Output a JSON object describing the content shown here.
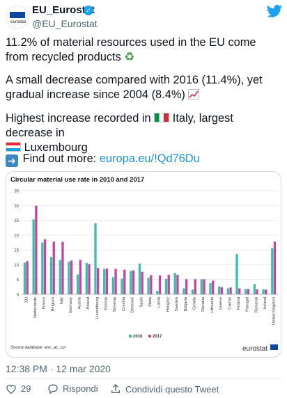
{
  "user": {
    "display_name": "EU_Eurostat",
    "handle": "@EU_Eurostat",
    "logo_text": "eurostat",
    "verified_icon": "verified-badge-icon"
  },
  "tweet": {
    "p1": "11.2% of material resources used in the EU come from recycled products",
    "p2": "A small decrease compared with 2016 (11.4%), yet gradual increase since 2004 (8.4%)",
    "p3a": "Highest increase recorded in",
    "p3b": "Italy, largest decrease in",
    "p3c": "Luxembourg",
    "p4a": "Find out more:",
    "p4link": "europa.eu/!Qd76Du"
  },
  "chart_data": {
    "type": "bar",
    "title": "Circular material use rate in 2010 and 2017",
    "categories": [
      "EU",
      "Netherlands",
      "France",
      "Belgium",
      "Italy",
      "Germany",
      "Austria",
      "Poland",
      "Luxembourg",
      "Estonia",
      "Slovenia",
      "Czechia",
      "Denmark",
      "Spain",
      "Malta",
      "Latvia",
      "Hungary",
      "Sweden",
      "Bulgaria",
      "Croatia",
      "Slovakia",
      "Lithuania",
      "Greece",
      "Cyprus",
      "Finland",
      "Portugal",
      "Romania",
      "Ireland",
      "United Kingdom"
    ],
    "series": [
      {
        "name": "2010",
        "color": "#3bbfad",
        "values": [
          10.7,
          25.3,
          17.5,
          12.6,
          11.6,
          11.0,
          6.7,
          10.6,
          24.0,
          8.6,
          5.8,
          5.3,
          7.9,
          10.4,
          5.6,
          1.2,
          5.2,
          7.2,
          2.0,
          1.6,
          5.1,
          3.8,
          2.7,
          2.0,
          13.6,
          1.8,
          3.5,
          1.7,
          15.6
        ]
      },
      {
        "name": "2017",
        "color": "#c6449e",
        "values": [
          11.2,
          29.9,
          18.6,
          17.8,
          17.7,
          11.4,
          11.6,
          10.2,
          8.9,
          8.7,
          8.6,
          8.3,
          8.1,
          7.6,
          6.5,
          6.4,
          6.6,
          6.6,
          5.1,
          5.1,
          5.1,
          4.6,
          2.4,
          2.3,
          2.0,
          1.8,
          1.7,
          1.6,
          17.8
        ]
      }
    ],
    "ylim": [
      0,
      35
    ],
    "yticks": [
      0,
      5,
      10,
      15,
      20,
      25,
      30,
      35
    ],
    "legend_position": "bottom-center",
    "source": "Source database: env_ac_cur",
    "brand": "eurostat"
  },
  "meta": {
    "timestamp": "12:38 PM · 12 mar 2020"
  },
  "actions": {
    "likes": "29",
    "reply_label": "Rispondi",
    "share_label": "Condividi questo Tweet"
  }
}
